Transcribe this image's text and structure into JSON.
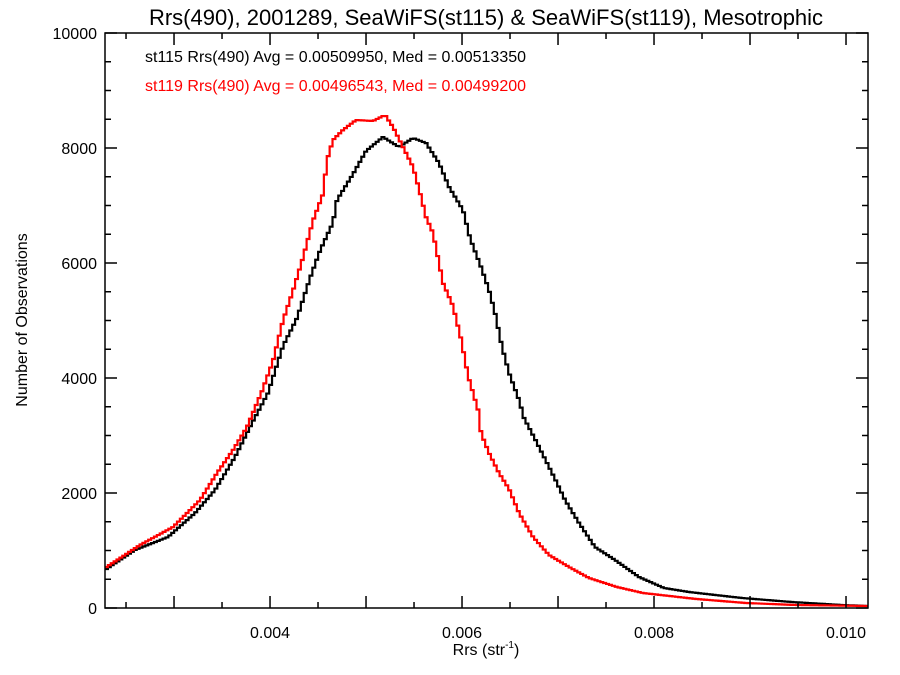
{
  "chart_data": {
    "type": "line",
    "style": "histogram-step",
    "title": "Rrs(490), 2001289, SeaWiFS(st115) & SeaWiFS(st119), Mesotrophic",
    "xlabel_main": "Rrs (str",
    "xlabel_sup": "-1",
    "xlabel_close": ")",
    "ylabel": "Number of Observations",
    "xlim": [
      0.002281,
      0.010229
    ],
    "ylim": [
      0,
      10000
    ],
    "bin_width": 3e-05,
    "x_major_ticks": [
      0.004,
      0.006,
      0.008,
      0.01
    ],
    "x_tick_labels": [
      "0.004",
      "0.006",
      "0.008",
      "0.010"
    ],
    "x_minor_step": 0.0005,
    "y_major_ticks": [
      0,
      2000,
      4000,
      6000,
      8000,
      10000
    ],
    "y_tick_labels": [
      "0",
      "2000",
      "4000",
      "6000",
      "8000",
      "10000"
    ],
    "y_minor_step": 500,
    "grid": false,
    "annotations": [
      {
        "text": "st115 Rrs(490) Avg = 0.00509950, Med = 0.00513350",
        "color": "#000000"
      },
      {
        "text": "st119 Rrs(490) Avg = 0.00496543, Med = 0.00499200",
        "color": "#ff0000"
      }
    ],
    "series": [
      {
        "name": "st115",
        "color": "#000000",
        "points": [
          [
            0.002281,
            661
          ],
          [
            0.002594,
            1009
          ],
          [
            0.002938,
            1235
          ],
          [
            0.003219,
            1652
          ],
          [
            0.003427,
            2052
          ],
          [
            0.003635,
            2626
          ],
          [
            0.003812,
            3217
          ],
          [
            0.003979,
            3739
          ],
          [
            0.004135,
            4557
          ],
          [
            0.004281,
            5043
          ],
          [
            0.004417,
            5739
          ],
          [
            0.004521,
            6217
          ],
          [
            0.004656,
            6704
          ],
          [
            0.004698,
            7096
          ],
          [
            0.004865,
            7548
          ],
          [
            0.005,
            7948
          ],
          [
            0.005177,
            8191
          ],
          [
            0.005344,
            8017
          ],
          [
            0.00549,
            8174
          ],
          [
            0.005625,
            8087
          ],
          [
            0.00576,
            7739
          ],
          [
            0.005865,
            7322
          ],
          [
            0.00601,
            6922
          ],
          [
            0.006083,
            6435
          ],
          [
            0.006198,
            5930
          ],
          [
            0.006281,
            5530
          ],
          [
            0.006344,
            5130
          ],
          [
            0.006417,
            4539
          ],
          [
            0.00649,
            4087
          ],
          [
            0.006594,
            3617
          ],
          [
            0.006646,
            3304
          ],
          [
            0.00676,
            2939
          ],
          [
            0.006865,
            2591
          ],
          [
            0.006969,
            2243
          ],
          [
            0.007073,
            1878
          ],
          [
            0.007219,
            1478
          ],
          [
            0.007385,
            1061
          ],
          [
            0.007594,
            835
          ],
          [
            0.007844,
            539
          ],
          [
            0.008104,
            348
          ],
          [
            0.008365,
            278
          ],
          [
            0.008917,
            174
          ],
          [
            0.009438,
            104
          ],
          [
            0.009958,
            52
          ],
          [
            0.010229,
            35
          ]
        ]
      },
      {
        "name": "st119",
        "color": "#ff0000",
        "points": [
          [
            0.002281,
            696
          ],
          [
            0.002646,
            1096
          ],
          [
            0.00299,
            1409
          ],
          [
            0.003271,
            1878
          ],
          [
            0.003448,
            2348
          ],
          [
            0.003615,
            2748
          ],
          [
            0.00376,
            3148
          ],
          [
            0.003917,
            3774
          ],
          [
            0.004031,
            4296
          ],
          [
            0.004135,
            5000
          ],
          [
            0.00424,
            5522
          ],
          [
            0.004344,
            6096
          ],
          [
            0.004448,
            6739
          ],
          [
            0.004552,
            7200
          ],
          [
            0.004594,
            7791
          ],
          [
            0.004656,
            8139
          ],
          [
            0.00476,
            8313
          ],
          [
            0.004896,
            8487
          ],
          [
            0.005073,
            8470
          ],
          [
            0.005198,
            8574
          ],
          [
            0.005281,
            8365
          ],
          [
            0.005385,
            8017
          ],
          [
            0.00549,
            7670
          ],
          [
            0.005563,
            7217
          ],
          [
            0.005625,
            6800
          ],
          [
            0.005698,
            6522
          ],
          [
            0.005802,
            5652
          ],
          [
            0.005906,
            5252
          ],
          [
            0.00599,
            4678
          ],
          [
            0.006063,
            4035
          ],
          [
            0.006115,
            3739
          ],
          [
            0.006177,
            3391
          ],
          [
            0.006198,
            3043
          ],
          [
            0.006281,
            2696
          ],
          [
            0.006385,
            2348
          ],
          [
            0.00649,
            2070
          ],
          [
            0.006594,
            1652
          ],
          [
            0.00674,
            1235
          ],
          [
            0.006906,
            922
          ],
          [
            0.007115,
            713
          ],
          [
            0.007323,
            522
          ],
          [
            0.007615,
            365
          ],
          [
            0.007885,
            261
          ],
          [
            0.008438,
            157
          ],
          [
            0.008958,
            87
          ],
          [
            0.009479,
            52
          ],
          [
            0.010229,
            35
          ]
        ]
      }
    ]
  }
}
